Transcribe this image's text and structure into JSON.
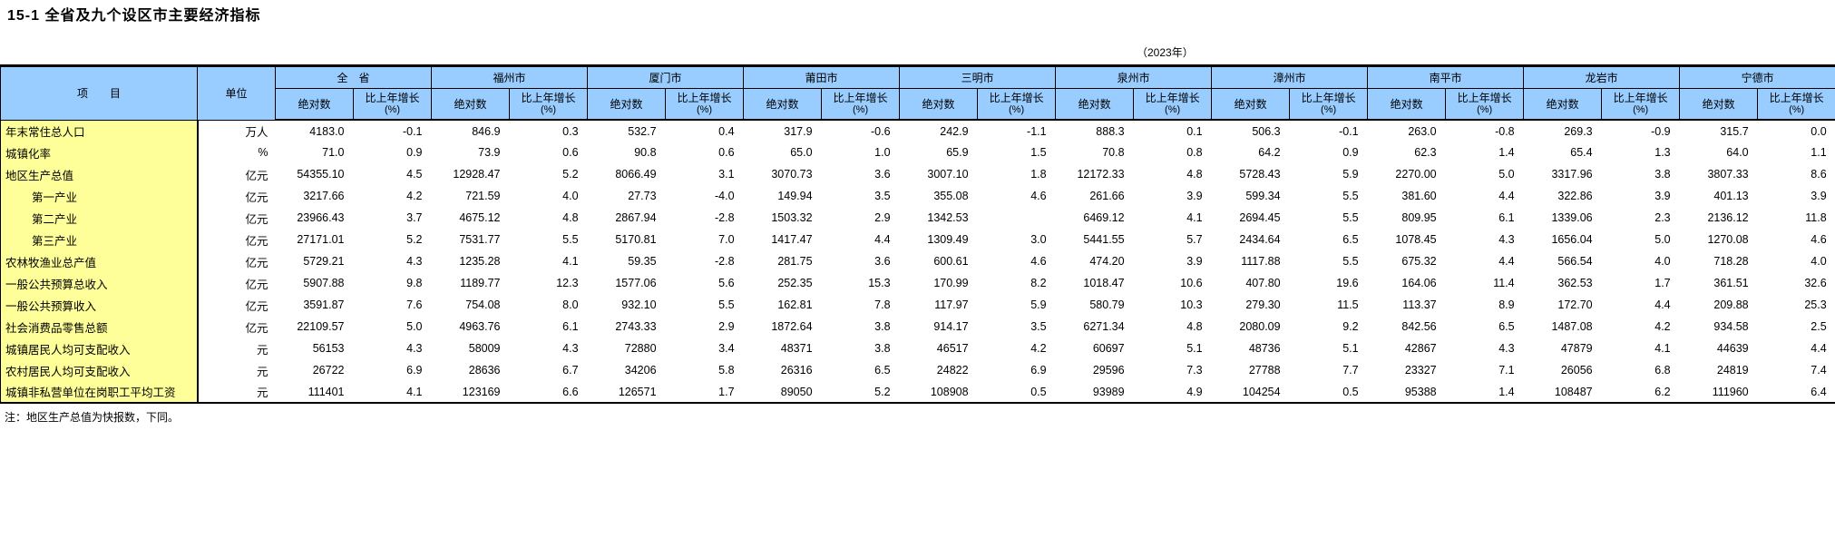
{
  "title": "15-1 全省及九个设区市主要经济指标",
  "subtitle": "（2023年）",
  "note": "注：地区生产总值为快报数，下同。",
  "colors": {
    "header_bg": "#99CCFF",
    "label_bg": "#FFFF99",
    "border": "#000000"
  },
  "table": {
    "item_header": "项　　目",
    "unit_header": "单位",
    "abs_header": "绝对数",
    "growth_header_line1": "比上年增长",
    "growth_header_line2": "(%)",
    "regions": [
      "全　省",
      "福州市",
      "厦门市",
      "莆田市",
      "三明市",
      "泉州市",
      "漳州市",
      "南平市",
      "龙岩市",
      "宁德市"
    ],
    "rows": [
      {
        "label": "年末常住总人口",
        "indent": false,
        "unit": "万人",
        "values": [
          [
            "4183.0",
            "-0.1"
          ],
          [
            "846.9",
            "0.3"
          ],
          [
            "532.7",
            "0.4"
          ],
          [
            "317.9",
            "-0.6"
          ],
          [
            "242.9",
            "-1.1"
          ],
          [
            "888.3",
            "0.1"
          ],
          [
            "506.3",
            "-0.1"
          ],
          [
            "263.0",
            "-0.8"
          ],
          [
            "269.3",
            "-0.9"
          ],
          [
            "315.7",
            "0.0"
          ]
        ]
      },
      {
        "label": "城镇化率",
        "indent": false,
        "unit": "%",
        "values": [
          [
            "71.0",
            "0.9"
          ],
          [
            "73.9",
            "0.6"
          ],
          [
            "90.8",
            "0.6"
          ],
          [
            "65.0",
            "1.0"
          ],
          [
            "65.9",
            "1.5"
          ],
          [
            "70.8",
            "0.8"
          ],
          [
            "64.2",
            "0.9"
          ],
          [
            "62.3",
            "1.4"
          ],
          [
            "65.4",
            "1.3"
          ],
          [
            "64.0",
            "1.1"
          ]
        ]
      },
      {
        "label": "地区生产总值",
        "indent": false,
        "unit": "亿元",
        "values": [
          [
            "54355.10",
            "4.5"
          ],
          [
            "12928.47",
            "5.2"
          ],
          [
            "8066.49",
            "3.1"
          ],
          [
            "3070.73",
            "3.6"
          ],
          [
            "3007.10",
            "1.8"
          ],
          [
            "12172.33",
            "4.8"
          ],
          [
            "5728.43",
            "5.9"
          ],
          [
            "2270.00",
            "5.0"
          ],
          [
            "3317.96",
            "3.8"
          ],
          [
            "3807.33",
            "8.6"
          ]
        ]
      },
      {
        "label": "第一产业",
        "indent": true,
        "unit": "亿元",
        "values": [
          [
            "3217.66",
            "4.2"
          ],
          [
            "721.59",
            "4.0"
          ],
          [
            "27.73",
            "-4.0"
          ],
          [
            "149.94",
            "3.5"
          ],
          [
            "355.08",
            "4.6"
          ],
          [
            "261.66",
            "3.9"
          ],
          [
            "599.34",
            "5.5"
          ],
          [
            "381.60",
            "4.4"
          ],
          [
            "322.86",
            "3.9"
          ],
          [
            "401.13",
            "3.9"
          ]
        ]
      },
      {
        "label": "第二产业",
        "indent": true,
        "unit": "亿元",
        "values": [
          [
            "23966.43",
            "3.7"
          ],
          [
            "4675.12",
            "4.8"
          ],
          [
            "2867.94",
            "-2.8"
          ],
          [
            "1503.32",
            "2.9"
          ],
          [
            "1342.53",
            ""
          ],
          [
            "6469.12",
            "4.1"
          ],
          [
            "2694.45",
            "5.5"
          ],
          [
            "809.95",
            "6.1"
          ],
          [
            "1339.06",
            "2.3"
          ],
          [
            "2136.12",
            "11.8"
          ]
        ]
      },
      {
        "label": "第三产业",
        "indent": true,
        "unit": "亿元",
        "values": [
          [
            "27171.01",
            "5.2"
          ],
          [
            "7531.77",
            "5.5"
          ],
          [
            "5170.81",
            "7.0"
          ],
          [
            "1417.47",
            "4.4"
          ],
          [
            "1309.49",
            "3.0"
          ],
          [
            "5441.55",
            "5.7"
          ],
          [
            "2434.64",
            "6.5"
          ],
          [
            "1078.45",
            "4.3"
          ],
          [
            "1656.04",
            "5.0"
          ],
          [
            "1270.08",
            "4.6"
          ]
        ]
      },
      {
        "label": "农林牧渔业总产值",
        "indent": false,
        "unit": "亿元",
        "values": [
          [
            "5729.21",
            "4.3"
          ],
          [
            "1235.28",
            "4.1"
          ],
          [
            "59.35",
            "-2.8"
          ],
          [
            "281.75",
            "3.6"
          ],
          [
            "600.61",
            "4.6"
          ],
          [
            "474.20",
            "3.9"
          ],
          [
            "1117.88",
            "5.5"
          ],
          [
            "675.32",
            "4.4"
          ],
          [
            "566.54",
            "4.0"
          ],
          [
            "718.28",
            "4.0"
          ]
        ]
      },
      {
        "label": "一般公共预算总收入",
        "indent": false,
        "unit": "亿元",
        "values": [
          [
            "5907.88",
            "9.8"
          ],
          [
            "1189.77",
            "12.3"
          ],
          [
            "1577.06",
            "5.6"
          ],
          [
            "252.35",
            "15.3"
          ],
          [
            "170.99",
            "8.2"
          ],
          [
            "1018.47",
            "10.6"
          ],
          [
            "407.80",
            "19.6"
          ],
          [
            "164.06",
            "11.4"
          ],
          [
            "362.53",
            "1.7"
          ],
          [
            "361.51",
            "32.6"
          ]
        ]
      },
      {
        "label": "一般公共预算收入",
        "indent": false,
        "unit": "亿元",
        "values": [
          [
            "3591.87",
            "7.6"
          ],
          [
            "754.08",
            "8.0"
          ],
          [
            "932.10",
            "5.5"
          ],
          [
            "162.81",
            "7.8"
          ],
          [
            "117.97",
            "5.9"
          ],
          [
            "580.79",
            "10.3"
          ],
          [
            "279.30",
            "11.5"
          ],
          [
            "113.37",
            "8.9"
          ],
          [
            "172.70",
            "4.4"
          ],
          [
            "209.88",
            "25.3"
          ]
        ]
      },
      {
        "label": "社会消费品零售总额",
        "indent": false,
        "unit": "亿元",
        "values": [
          [
            "22109.57",
            "5.0"
          ],
          [
            "4963.76",
            "6.1"
          ],
          [
            "2743.33",
            "2.9"
          ],
          [
            "1872.64",
            "3.8"
          ],
          [
            "914.17",
            "3.5"
          ],
          [
            "6271.34",
            "4.8"
          ],
          [
            "2080.09",
            "9.2"
          ],
          [
            "842.56",
            "6.5"
          ],
          [
            "1487.08",
            "4.2"
          ],
          [
            "934.58",
            "2.5"
          ]
        ]
      },
      {
        "label": "城镇居民人均可支配收入",
        "indent": false,
        "unit": "元",
        "values": [
          [
            "56153",
            "4.3"
          ],
          [
            "58009",
            "4.3"
          ],
          [
            "72880",
            "3.4"
          ],
          [
            "48371",
            "3.8"
          ],
          [
            "46517",
            "4.2"
          ],
          [
            "60697",
            "5.1"
          ],
          [
            "48736",
            "5.1"
          ],
          [
            "42867",
            "4.3"
          ],
          [
            "47879",
            "4.1"
          ],
          [
            "44639",
            "4.4"
          ]
        ]
      },
      {
        "label": "农村居民人均可支配收入",
        "indent": false,
        "unit": "元",
        "values": [
          [
            "26722",
            "6.9"
          ],
          [
            "28636",
            "6.7"
          ],
          [
            "34206",
            "5.8"
          ],
          [
            "26316",
            "6.5"
          ],
          [
            "24822",
            "6.9"
          ],
          [
            "29596",
            "7.3"
          ],
          [
            "27788",
            "7.7"
          ],
          [
            "23327",
            "7.1"
          ],
          [
            "26056",
            "6.8"
          ],
          [
            "24819",
            "7.4"
          ]
        ]
      },
      {
        "label": "城镇非私营单位在岗职工平均工资",
        "indent": false,
        "unit": "元",
        "values": [
          [
            "111401",
            "4.1"
          ],
          [
            "123169",
            "6.6"
          ],
          [
            "126571",
            "1.7"
          ],
          [
            "89050",
            "5.2"
          ],
          [
            "108908",
            "0.5"
          ],
          [
            "93989",
            "4.9"
          ],
          [
            "104254",
            "0.5"
          ],
          [
            "95388",
            "1.4"
          ],
          [
            "108487",
            "6.2"
          ],
          [
            "111960",
            "6.4"
          ]
        ]
      }
    ]
  }
}
